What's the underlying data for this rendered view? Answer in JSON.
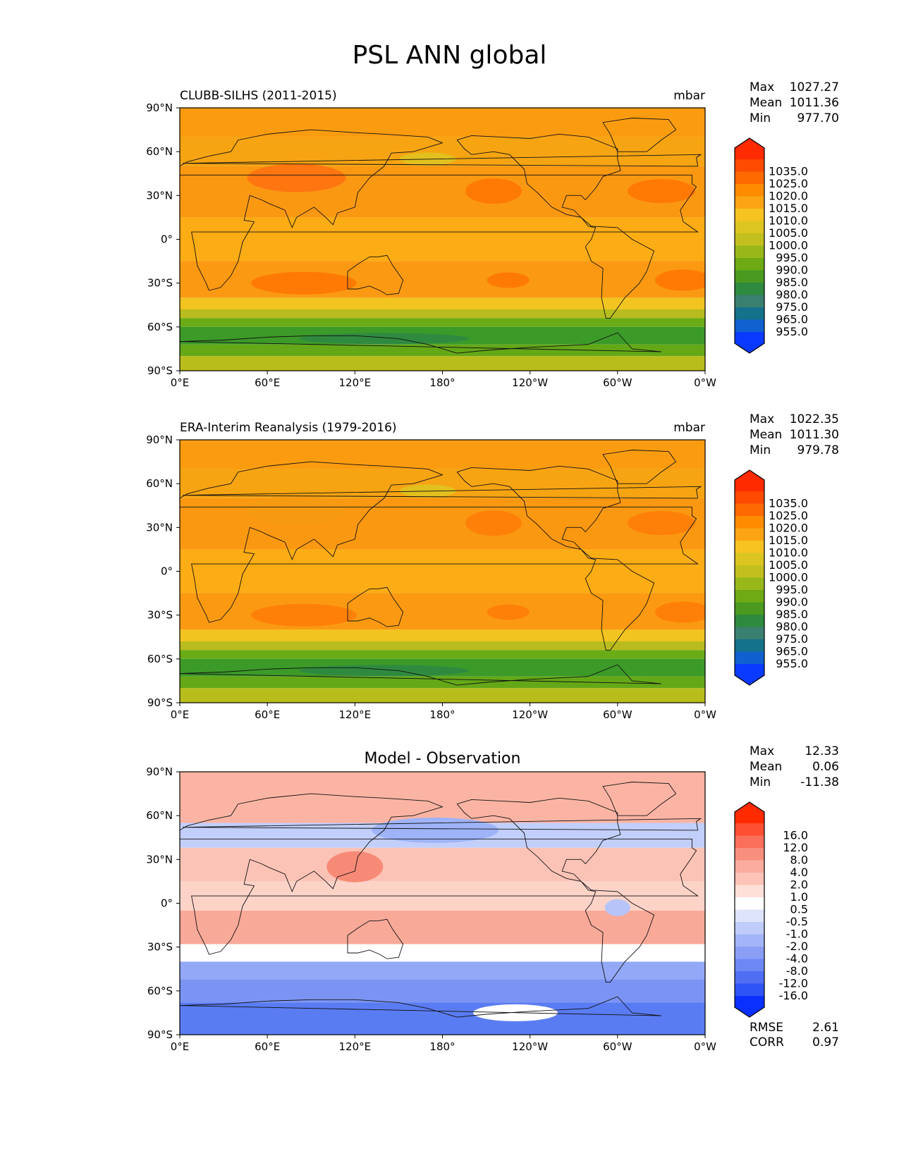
{
  "title": "PSL ANN global",
  "axes": {
    "lat_ticks": [
      "90°N",
      "60°N",
      "30°N",
      "0°",
      "30°S",
      "60°S",
      "90°S"
    ],
    "lon_ticks": [
      "0°E",
      "60°E",
      "120°E",
      "180°",
      "120°W",
      "60°W",
      "0°W"
    ]
  },
  "stat_labels": {
    "max": "Max",
    "mean": "Mean",
    "min": "Min",
    "rmse": "RMSE",
    "corr": "CORR"
  },
  "panels": [
    {
      "id": "model",
      "title_left": "CLUBB-SILHS (2011-2015)",
      "units": "mbar",
      "title_center": "",
      "stats": {
        "max": "1027.27",
        "mean": "1011.36",
        "min": "977.70"
      },
      "colorbar": "abs"
    },
    {
      "id": "obs",
      "title_left": "ERA-Interim Reanalysis (1979-2016)",
      "units": "mbar",
      "title_center": "",
      "stats": {
        "max": "1022.35",
        "mean": "1011.30",
        "min": "979.78"
      },
      "colorbar": "abs"
    },
    {
      "id": "diff",
      "title_left": "",
      "units": "",
      "title_center": "Model - Observation",
      "stats": {
        "max": "12.33",
        "mean": "0.06",
        "min": "-11.38"
      },
      "rmse": "2.61",
      "corr": "0.97",
      "colorbar": "diff"
    }
  ],
  "colorbars": {
    "abs": {
      "labels": [
        "1035.0",
        "1025.0",
        "1020.0",
        "1015.0",
        "1010.0",
        "1005.0",
        "1000.0",
        "995.0",
        "990.0",
        "985.0",
        "980.0",
        "975.0",
        "965.0",
        "955.0"
      ],
      "colors": [
        "#ff2a00",
        "#ff4a00",
        "#ff6a00",
        "#ff8c00",
        "#fca414",
        "#f6c320",
        "#dcc520",
        "#c2bf1e",
        "#98b81a",
        "#6eaa14",
        "#4a9a20",
        "#2e8a3e",
        "#3a8070",
        "#14728a",
        "#1060d0",
        "#0a3aff"
      ]
    },
    "diff": {
      "labels": [
        "16.0",
        "12.0",
        "8.0",
        "4.0",
        "2.0",
        "1.0",
        "0.5",
        "-0.5",
        "-1.0",
        "-2.0",
        "-4.0",
        "-8.0",
        "-12.0",
        "-16.0"
      ],
      "colors": [
        "#ff2a00",
        "#ff4f32",
        "#fa6e5a",
        "#f88f7e",
        "#fbac9e",
        "#fdc3b6",
        "#fee0d8",
        "#ffffff",
        "#dde4fc",
        "#c0cdfa",
        "#a3b5f8",
        "#8a9ef6",
        "#6d87f4",
        "#4f6ef3",
        "#2f54f6",
        "#0a30ff"
      ]
    }
  }
}
